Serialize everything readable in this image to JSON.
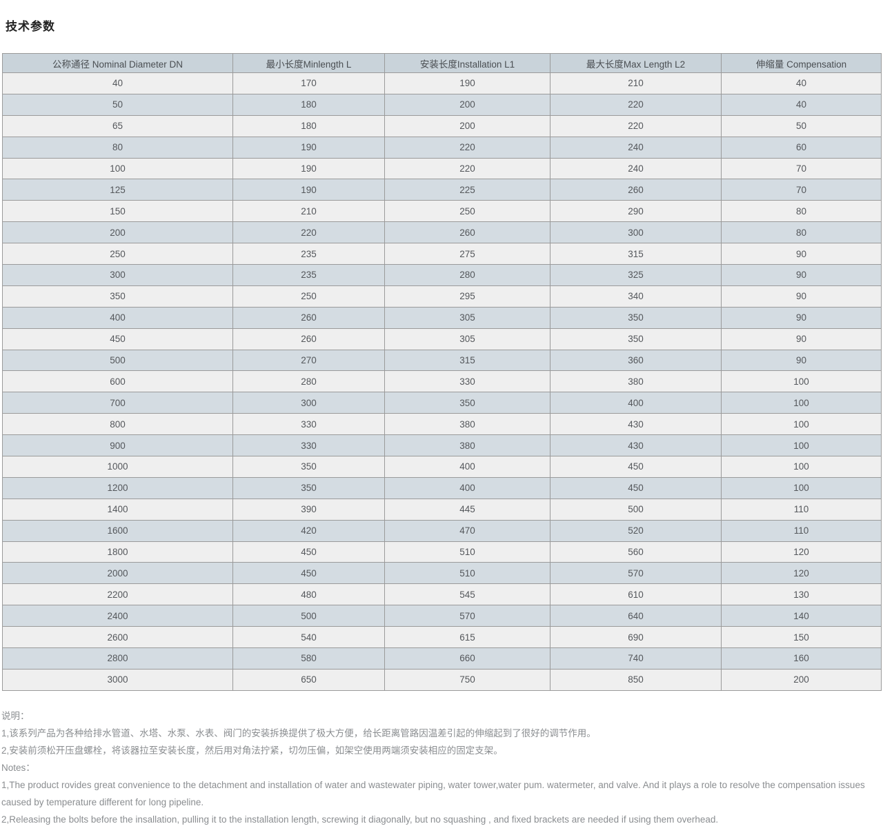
{
  "page_title": "技术参数",
  "colors": {
    "header_bg": "#c9d3da",
    "row_bg": "#efefef",
    "row_alt_bg": "#d4dce2",
    "border": "#9a9a9a"
  },
  "table": {
    "headers": [
      "公称通径 Nominal Diameter DN",
      "最小长度Minlength L",
      "安装长度Installation L1",
      "最大长度Max Length L2",
      "伸缩量 Compensation"
    ],
    "rows": [
      [
        40,
        170,
        190,
        210,
        40
      ],
      [
        50,
        180,
        200,
        220,
        40
      ],
      [
        65,
        180,
        200,
        220,
        50
      ],
      [
        80,
        190,
        220,
        240,
        60
      ],
      [
        100,
        190,
        220,
        240,
        70
      ],
      [
        125,
        190,
        225,
        260,
        70
      ],
      [
        150,
        210,
        250,
        290,
        80
      ],
      [
        200,
        220,
        260,
        300,
        80
      ],
      [
        250,
        235,
        275,
        315,
        90
      ],
      [
        300,
        235,
        280,
        325,
        90
      ],
      [
        350,
        250,
        295,
        340,
        90
      ],
      [
        400,
        260,
        305,
        350,
        90
      ],
      [
        450,
        260,
        305,
        350,
        90
      ],
      [
        500,
        270,
        315,
        360,
        90
      ],
      [
        600,
        280,
        330,
        380,
        100
      ],
      [
        700,
        300,
        350,
        400,
        100
      ],
      [
        800,
        330,
        380,
        430,
        100
      ],
      [
        900,
        330,
        380,
        430,
        100
      ],
      [
        1000,
        350,
        400,
        450,
        100
      ],
      [
        1200,
        350,
        400,
        450,
        100
      ],
      [
        1400,
        390,
        445,
        500,
        110
      ],
      [
        1600,
        420,
        470,
        520,
        110
      ],
      [
        1800,
        450,
        510,
        560,
        120
      ],
      [
        2000,
        450,
        510,
        570,
        120
      ],
      [
        2200,
        480,
        545,
        610,
        130
      ],
      [
        2400,
        500,
        570,
        640,
        140
      ],
      [
        2600,
        540,
        615,
        690,
        150
      ],
      [
        2800,
        580,
        660,
        740,
        160
      ],
      [
        3000,
        650,
        750,
        850,
        200
      ]
    ]
  },
  "notes": {
    "lines": [
      "说明：",
      "1,该系列产品为各种给排水管道、水塔、水泵、水表、阀门的安装拆换提供了极大方便，给长距离管路因温差引起的伸缩起到了很好的调节作用。",
      "2,安装前须松开压盘螺栓，将该器拉至安装长度，然后用对角法拧紧，切勿压偏，如架空使用两端须安装相应的固定支架。",
      "Notes：",
      "1,The product rovides great convenience to the detachment and installation of water and wastewater piping, water tower,water pum. watermeter, and valve. And it plays a role to resolve the compensation issues caused by temperature different for long pipeline.",
      "2,Releasing the bolts before the insallation, pulling it to the installation length, screwing it diagonally, but no squashing , and fixed brackets are needed if using them overhead."
    ]
  }
}
